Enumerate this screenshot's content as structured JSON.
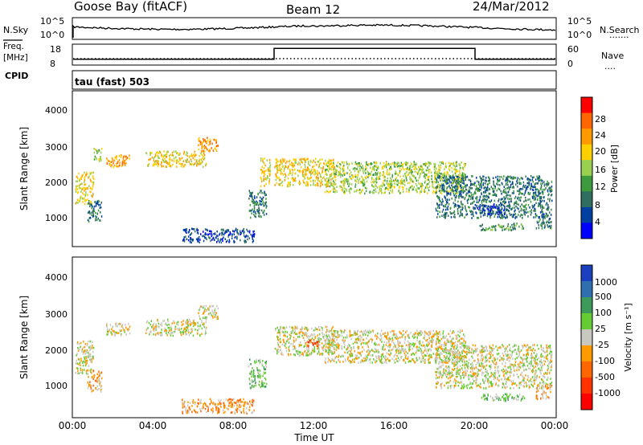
{
  "header": {
    "station": "Goose Bay (fitACF)",
    "beam": "Beam 12",
    "date": "24/Mar/2012"
  },
  "strip_noise": {
    "left_label": "N.Sky",
    "left_ticks": [
      "10^5",
      "10^0"
    ],
    "right_ticks": [
      "10^5",
      "10^0"
    ],
    "right_label": "N.Search",
    "right_marker": "......."
  },
  "strip_freq": {
    "left_label_top": "Freq.",
    "left_label_unit": "[MHz]",
    "left_ticks": [
      "18",
      "8"
    ],
    "right_ticks": [
      "60",
      "0"
    ],
    "right_label": "Nave",
    "right_marker": "....",
    "cpid_label": "CPID",
    "freq_series": [
      {
        "t": 0,
        "mhz": 10.6
      },
      {
        "t": 10.0,
        "mhz": 10.6
      },
      {
        "t": 10.0,
        "mhz": 16.2
      },
      {
        "t": 20.0,
        "mhz": 16.2
      },
      {
        "t": 20.0,
        "mhz": 10.6
      },
      {
        "t": 24,
        "mhz": 10.6
      }
    ]
  },
  "mode_text": "tau (fast) 503",
  "x_axis": {
    "label": "Time UT",
    "ticks": [
      "00:00",
      "04:00",
      "08:00",
      "12:00",
      "16:00",
      "20:00",
      "00:00"
    ]
  },
  "chart_data": [
    {
      "type": "heatmap",
      "title": "",
      "xlabel": "",
      "ylabel": "Slant Range [km]",
      "xlim": [
        0,
        24
      ],
      "ylim": [
        180,
        4600
      ],
      "yticks": [
        "1000",
        "2000",
        "3000",
        "4000"
      ],
      "colorbar": {
        "label": "Power [dB]",
        "ticks": [
          "28",
          "24",
          "20",
          "16",
          "12",
          "8",
          "4"
        ],
        "colors": [
          "#ff0000",
          "#ff6600",
          "#ff9900",
          "#ffd000",
          "#99d050",
          "#3d9a3d",
          "#2f6f5f",
          "#0040a0",
          "#0000ff"
        ]
      },
      "regions": [
        {
          "t": [
            0.1,
            1.0
          ],
          "r": [
            1400,
            2300
          ],
          "level": 3
        },
        {
          "t": [
            0.7,
            1.4
          ],
          "r": [
            900,
            1500
          ],
          "level": 6
        },
        {
          "t": [
            1.0,
            1.4
          ],
          "r": [
            2600,
            3000
          ],
          "level": 4
        },
        {
          "t": [
            1.6,
            2.8
          ],
          "r": [
            2450,
            2800
          ],
          "level": 2
        },
        {
          "t": [
            3.6,
            6.6
          ],
          "r": [
            2450,
            2900
          ],
          "level": 3
        },
        {
          "t": [
            6.2,
            7.2
          ],
          "r": [
            2900,
            3300
          ],
          "level": 2
        },
        {
          "t": [
            5.4,
            9.0
          ],
          "r": [
            300,
            700
          ],
          "level": 7
        },
        {
          "t": [
            8.7,
            9.6
          ],
          "r": [
            1000,
            1800
          ],
          "level": 6
        },
        {
          "t": [
            9.3,
            9.8
          ],
          "r": [
            1900,
            2700
          ],
          "level": 3
        },
        {
          "t": [
            10.0,
            13.0
          ],
          "r": [
            1900,
            2700
          ],
          "level": 3
        },
        {
          "t": [
            12.5,
            19.5
          ],
          "r": [
            1700,
            2600
          ],
          "level": 4
        },
        {
          "t": [
            18.0,
            23.8
          ],
          "r": [
            1000,
            2200
          ],
          "level": 6
        },
        {
          "t": [
            19.8,
            21.5
          ],
          "r": [
            1100,
            1400
          ],
          "level": 7
        },
        {
          "t": [
            20.2,
            22.5
          ],
          "r": [
            650,
            850
          ],
          "level": 5
        },
        {
          "t": [
            23.0,
            23.8
          ],
          "r": [
            700,
            1100
          ],
          "level": 6
        }
      ]
    },
    {
      "type": "heatmap",
      "title": "",
      "xlabel": "Time UT",
      "ylabel": "Slant Range [km]",
      "xlim": [
        0,
        24
      ],
      "ylim": [
        180,
        4600
      ],
      "yticks": [
        "1000",
        "2000",
        "3000",
        "4000"
      ],
      "colorbar": {
        "label": "Velocity [m s⁻¹]",
        "ticks": [
          "1000",
          "500",
          "100",
          "25",
          "-25",
          "-100",
          "-500",
          "-1000"
        ],
        "colors": [
          "#1a3fbf",
          "#2f6faf",
          "#3d9a5a",
          "#66cc33",
          "#c8c8c0",
          "#ff9900",
          "#ff6600",
          "#ff3300",
          "#ff0000"
        ]
      },
      "regions": [
        {
          "t": [
            0.1,
            1.0
          ],
          "r": [
            1400,
            2300
          ],
          "level": 4
        },
        {
          "t": [
            0.7,
            1.4
          ],
          "r": [
            900,
            1500
          ],
          "level": 5
        },
        {
          "t": [
            1.6,
            2.8
          ],
          "r": [
            2450,
            2800
          ],
          "level": 4
        },
        {
          "t": [
            3.6,
            6.6
          ],
          "r": [
            2450,
            2900
          ],
          "level": 4
        },
        {
          "t": [
            6.2,
            7.2
          ],
          "r": [
            2900,
            3300
          ],
          "level": 4
        },
        {
          "t": [
            5.4,
            9.0
          ],
          "r": [
            300,
            700
          ],
          "level": 5
        },
        {
          "t": [
            8.7,
            9.6
          ],
          "r": [
            1000,
            1800
          ],
          "level": 3
        },
        {
          "t": [
            10.0,
            13.0
          ],
          "r": [
            1900,
            2700
          ],
          "level": 4
        },
        {
          "t": [
            11.6,
            12.2
          ],
          "r": [
            2150,
            2350
          ],
          "level": 7
        },
        {
          "t": [
            12.5,
            19.5
          ],
          "r": [
            1700,
            2600
          ],
          "level": 4
        },
        {
          "t": [
            18.0,
            23.8
          ],
          "r": [
            1000,
            2200
          ],
          "level": 4
        },
        {
          "t": [
            20.2,
            22.5
          ],
          "r": [
            650,
            850
          ],
          "level": 3
        },
        {
          "t": [
            23.0,
            23.8
          ],
          "r": [
            700,
            1100
          ],
          "level": 5
        }
      ]
    }
  ]
}
